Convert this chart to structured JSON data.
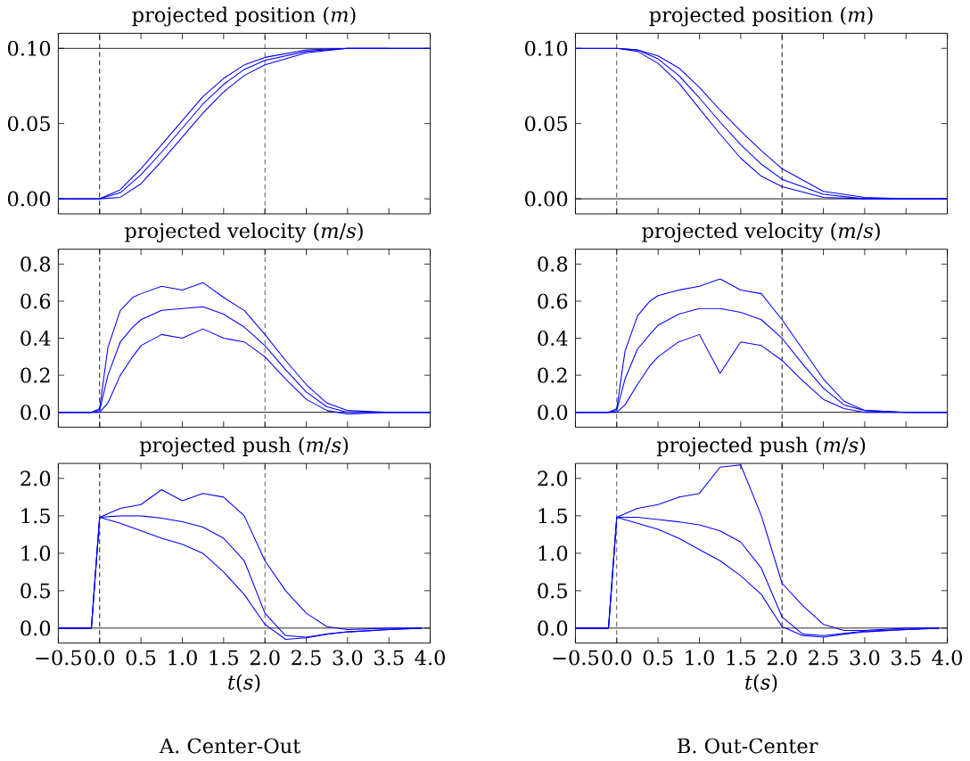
{
  "chart_data": [
    {
      "type": "line",
      "title": "projected position (*m*)",
      "x": [
        -0.5,
        0,
        0.25,
        0.5,
        0.75,
        1.0,
        1.25,
        1.5,
        1.75,
        2.0,
        2.5,
        3.0,
        3.5,
        4.0
      ],
      "xlim": [
        -0.5,
        4.0
      ],
      "ylim": [
        -0.01,
        0.11
      ],
      "tick_labels": "y",
      "xticks": [
        {
          "value": -0.5,
          "label": null
        },
        {
          "value": 0,
          "label": null
        },
        {
          "value": 0.5,
          "label": null
        },
        {
          "value": 1.0,
          "label": null
        },
        {
          "value": 1.5,
          "label": null
        },
        {
          "value": 2.0,
          "label": null
        },
        {
          "value": 2.5,
          "label": null
        },
        {
          "value": 3.0,
          "label": null
        },
        {
          "value": 3.5,
          "label": null
        },
        {
          "value": 4.0,
          "label": null
        }
      ],
      "yticks": [
        {
          "value": 0,
          "label": "0.00"
        },
        {
          "value": 0.05,
          "label": "0.05"
        },
        {
          "value": 0.1,
          "label": "0.10"
        }
      ],
      "ref_lines": [
        {
          "axis": "x",
          "value": 0,
          "color": "#000000",
          "line_style": "dashed"
        },
        {
          "axis": "x",
          "value": 2,
          "color": "#000000",
          "line_style": "dashed"
        },
        {
          "axis": "y",
          "value": 0.1,
          "color": "#000000",
          "line_style": "solid"
        }
      ],
      "series": [
        {
          "color": "#0000ff",
          "x": [
            -0.5,
            0,
            0.25,
            0.5,
            0.75,
            1.0,
            1.25,
            1.5,
            1.75,
            2.0,
            2.5,
            3.0,
            3.5
          ],
          "values": [
            0,
            0,
            0.006,
            0.02,
            0.036,
            0.052,
            0.068,
            0.08,
            0.089,
            0.094,
            0.099,
            0.1,
            0.1
          ]
        },
        {
          "color": "#0000ff",
          "values": [
            0,
            0,
            0.004,
            0.016,
            0.031,
            0.047,
            0.063,
            0.076,
            0.086,
            0.092,
            0.098,
            0.1,
            0.1,
            0.1
          ]
        },
        {
          "color": "#0000ff",
          "x": [
            0,
            0.25,
            0.5,
            0.75,
            1.0,
            1.25,
            1.5,
            1.75,
            2.0,
            2.5,
            3.0,
            3.5,
            4.0
          ],
          "values": [
            0,
            0.001,
            0.01,
            0.025,
            0.041,
            0.057,
            0.071,
            0.082,
            0.089,
            0.097,
            0.1,
            0.1,
            0.1
          ]
        }
      ]
    },
    {
      "type": "line",
      "title": "projected position (*m*)",
      "x": [
        -0.5,
        0,
        0.25,
        0.5,
        0.75,
        1.0,
        1.25,
        1.5,
        1.75,
        2.0,
        2.5,
        3.0,
        3.5,
        4.0
      ],
      "xlim": [
        -0.5,
        4.0
      ],
      "ylim": [
        -0.01,
        0.11
      ],
      "tick_labels": "y",
      "xticks": [
        {
          "value": -0.5,
          "label": null
        },
        {
          "value": 0,
          "label": null
        },
        {
          "value": 0.5,
          "label": null
        },
        {
          "value": 1.0,
          "label": null
        },
        {
          "value": 1.5,
          "label": null
        },
        {
          "value": 2.0,
          "label": null
        },
        {
          "value": 2.5,
          "label": null
        },
        {
          "value": 3.0,
          "label": null
        },
        {
          "value": 3.5,
          "label": null
        },
        {
          "value": 4.0,
          "label": null
        }
      ],
      "yticks": [
        {
          "value": 0,
          "label": "0.00"
        },
        {
          "value": 0.05,
          "label": "0.05"
        },
        {
          "value": 0.1,
          "label": "0.10"
        }
      ],
      "ref_lines": [
        {
          "axis": "x",
          "value": 0,
          "color": "#000000",
          "line_style": "dashed"
        },
        {
          "axis": "x",
          "value": 2,
          "color": "#000000",
          "line_style": "dashed"
        },
        {
          "axis": "y",
          "value": 0,
          "color": "#000000",
          "line_style": "solid"
        }
      ],
      "series": [
        {
          "color": "#0000ff",
          "x": [
            -0.5,
            0,
            0.25,
            0.5,
            0.75,
            1.0,
            1.25,
            1.5,
            1.75,
            2.0,
            2.5,
            3.0,
            3.5
          ],
          "values": [
            0.1,
            0.1,
            0.098,
            0.09,
            0.077,
            0.06,
            0.043,
            0.027,
            0.015,
            0.008,
            0.001,
            0,
            0
          ]
        },
        {
          "color": "#0000ff",
          "values": [
            0.1,
            0.1,
            0.099,
            0.093,
            0.082,
            0.067,
            0.051,
            0.036,
            0.023,
            0.013,
            0.003,
            0,
            0,
            0
          ]
        },
        {
          "color": "#0000ff",
          "x": [
            0,
            0.25,
            0.5,
            0.75,
            1.0,
            1.25,
            1.5,
            1.75,
            2.0,
            2.5,
            3.0,
            3.5,
            4.0
          ],
          "values": [
            0.1,
            0.099,
            0.095,
            0.087,
            0.074,
            0.059,
            0.045,
            0.032,
            0.02,
            0.005,
            0.001,
            0,
            0
          ]
        }
      ]
    },
    {
      "type": "line",
      "title": "projected velocity (*m*/*s*)",
      "x": [
        -0.5,
        -0.1,
        0,
        0.1,
        0.25,
        0.4,
        0.5,
        0.75,
        1.0,
        1.25,
        1.5,
        1.75,
        2.0,
        2.25,
        2.5,
        2.75,
        3.0,
        3.5,
        4.0
      ],
      "xlim": [
        -0.5,
        4.0
      ],
      "ylim": [
        -0.08,
        0.88
      ],
      "tick_labels": "y",
      "xticks": [
        {
          "value": -0.5,
          "label": null
        },
        {
          "value": 0,
          "label": null
        },
        {
          "value": 0.5,
          "label": null
        },
        {
          "value": 1.0,
          "label": null
        },
        {
          "value": 1.5,
          "label": null
        },
        {
          "value": 2.0,
          "label": null
        },
        {
          "value": 2.5,
          "label": null
        },
        {
          "value": 3.0,
          "label": null
        },
        {
          "value": 3.5,
          "label": null
        },
        {
          "value": 4.0,
          "label": null
        }
      ],
      "yticks": [
        {
          "value": 0,
          "label": "0.0"
        },
        {
          "value": 0.2,
          "label": "0.2"
        },
        {
          "value": 0.4,
          "label": "0.4"
        },
        {
          "value": 0.6,
          "label": "0.6"
        },
        {
          "value": 0.8,
          "label": "0.8"
        }
      ],
      "ref_lines": [
        {
          "axis": "x",
          "value": 0,
          "color": "#000000",
          "line_style": "dashed"
        },
        {
          "axis": "x",
          "value": 2,
          "color": "#000000",
          "line_style": "dashed"
        },
        {
          "axis": "y",
          "value": 0,
          "color": "#000000",
          "line_style": "solid"
        }
      ],
      "series": [
        {
          "color": "#0000ff",
          "values": [
            0,
            0,
            0.02,
            0.35,
            0.55,
            0.62,
            0.64,
            0.68,
            0.66,
            0.7,
            0.62,
            0.55,
            0.42,
            0.28,
            0.15,
            0.05,
            0.01,
            0,
            0
          ]
        },
        {
          "color": "#0000ff",
          "values": [
            0,
            0,
            0.01,
            0.2,
            0.38,
            0.46,
            0.5,
            0.55,
            0.56,
            0.57,
            0.53,
            0.46,
            0.36,
            0.23,
            0.11,
            0.03,
            0,
            0,
            0
          ]
        },
        {
          "color": "#0000ff",
          "values": [
            0,
            0,
            0,
            0.05,
            0.2,
            0.3,
            0.36,
            0.42,
            0.4,
            0.45,
            0.4,
            0.38,
            0.3,
            0.18,
            0.07,
            0.01,
            -0.01,
            0,
            0
          ]
        }
      ]
    },
    {
      "type": "line",
      "title": "projected velocity (*m*/*s*)",
      "x": [
        -0.5,
        -0.1,
        0,
        0.1,
        0.25,
        0.4,
        0.5,
        0.75,
        1.0,
        1.25,
        1.5,
        1.75,
        2.0,
        2.25,
        2.5,
        2.75,
        3.0,
        3.5,
        4.0
      ],
      "xlim": [
        -0.5,
        4.0
      ],
      "ylim": [
        -0.08,
        0.88
      ],
      "tick_labels": "y",
      "xticks": [
        {
          "value": -0.5,
          "label": null
        },
        {
          "value": 0,
          "label": null
        },
        {
          "value": 0.5,
          "label": null
        },
        {
          "value": 1.0,
          "label": null
        },
        {
          "value": 1.5,
          "label": null
        },
        {
          "value": 2.0,
          "label": null
        },
        {
          "value": 2.5,
          "label": null
        },
        {
          "value": 3.0,
          "label": null
        },
        {
          "value": 3.5,
          "label": null
        },
        {
          "value": 4.0,
          "label": null
        }
      ],
      "yticks": [
        {
          "value": 0,
          "label": "0.0"
        },
        {
          "value": 0.2,
          "label": "0.2"
        },
        {
          "value": 0.4,
          "label": "0.4"
        },
        {
          "value": 0.6,
          "label": "0.6"
        },
        {
          "value": 0.8,
          "label": "0.8"
        }
      ],
      "ref_lines": [
        {
          "axis": "x",
          "value": 0,
          "color": "#000000",
          "line_style": "dashed"
        },
        {
          "axis": "x",
          "value": 2,
          "color": "#000000",
          "line_style": "dashed"
        },
        {
          "axis": "y",
          "value": 0,
          "color": "#000000",
          "line_style": "solid"
        }
      ],
      "series": [
        {
          "color": "#0000ff",
          "values": [
            0,
            0,
            0.02,
            0.33,
            0.52,
            0.6,
            0.63,
            0.66,
            0.68,
            0.72,
            0.66,
            0.64,
            0.5,
            0.34,
            0.18,
            0.06,
            0.01,
            0,
            0
          ]
        },
        {
          "color": "#0000ff",
          "values": [
            0,
            0,
            0.01,
            0.18,
            0.34,
            0.42,
            0.47,
            0.53,
            0.56,
            0.56,
            0.54,
            0.5,
            0.4,
            0.26,
            0.13,
            0.04,
            0.01,
            0,
            0
          ]
        },
        {
          "color": "#0000ff",
          "values": [
            0,
            0,
            0,
            0.04,
            0.15,
            0.25,
            0.3,
            0.38,
            0.42,
            0.21,
            0.38,
            0.36,
            0.28,
            0.17,
            0.07,
            0.02,
            0,
            0,
            0
          ]
        }
      ]
    },
    {
      "type": "line",
      "title": "projected push (*m*/*s*)",
      "xlabel": "*t*(*s*)",
      "x": [
        -0.5,
        -0.1,
        0,
        0.25,
        0.5,
        0.75,
        1.0,
        1.25,
        1.5,
        1.75,
        2.0,
        2.25,
        2.5,
        2.75,
        3.0,
        3.5,
        3.9
      ],
      "xlim": [
        -0.5,
        4.0
      ],
      "ylim": [
        -0.2,
        2.2
      ],
      "xticks": [
        {
          "value": -0.5,
          "label": "−0.5"
        },
        {
          "value": 0,
          "label": "0.0"
        },
        {
          "value": 0.5,
          "label": "0.5"
        },
        {
          "value": 1.0,
          "label": "1.0"
        },
        {
          "value": 1.5,
          "label": "1.5"
        },
        {
          "value": 2.0,
          "label": "2.0"
        },
        {
          "value": 2.5,
          "label": "2.5"
        },
        {
          "value": 3.0,
          "label": "3.0"
        },
        {
          "value": 3.5,
          "label": "3.5"
        },
        {
          "value": 4.0,
          "label": "4.0"
        }
      ],
      "yticks": [
        {
          "value": 0,
          "label": "0.0"
        },
        {
          "value": 0.5,
          "label": "0.5"
        },
        {
          "value": 1.0,
          "label": "1.0"
        },
        {
          "value": 1.5,
          "label": "1.5"
        },
        {
          "value": 2.0,
          "label": "2.0"
        }
      ],
      "ref_lines": [
        {
          "axis": "x",
          "value": 0,
          "color": "#000000",
          "line_style": "dashed"
        },
        {
          "axis": "x",
          "value": 2,
          "color": "#000000",
          "line_style": "dashed"
        },
        {
          "axis": "y",
          "value": 0,
          "color": "#000000",
          "line_style": "solid"
        }
      ],
      "annotations": [
        "A. Center-Out"
      ],
      "series": [
        {
          "color": "#0000ff",
          "values": [
            0,
            0,
            1.48,
            1.6,
            1.65,
            1.85,
            1.7,
            1.8,
            1.75,
            1.5,
            0.9,
            0.5,
            0.2,
            0.02,
            -0.02,
            0,
            0
          ]
        },
        {
          "color": "#0000ff",
          "values": [
            0,
            0,
            1.48,
            1.5,
            1.5,
            1.47,
            1.42,
            1.35,
            1.2,
            0.9,
            0.2,
            -0.1,
            -0.12,
            -0.08,
            -0.05,
            -0.02,
            0
          ]
        },
        {
          "color": "#0000ff",
          "values": [
            0,
            0,
            1.48,
            1.4,
            1.3,
            1.2,
            1.12,
            1.0,
            0.75,
            0.45,
            0.05,
            -0.15,
            -0.13,
            -0.08,
            -0.05,
            -0.02,
            0
          ]
        }
      ]
    },
    {
      "type": "line",
      "title": "projected push (*m*/*s*)",
      "xlabel": "*t*(*s*)",
      "x": [
        -0.5,
        -0.1,
        0,
        0.25,
        0.5,
        0.75,
        1.0,
        1.25,
        1.5,
        1.75,
        2.0,
        2.25,
        2.5,
        2.75,
        3.0,
        3.5,
        3.9
      ],
      "xlim": [
        -0.5,
        4.0
      ],
      "ylim": [
        -0.2,
        2.2
      ],
      "xticks": [
        {
          "value": -0.5,
          "label": "−0.5"
        },
        {
          "value": 0,
          "label": "0.0"
        },
        {
          "value": 0.5,
          "label": "0.5"
        },
        {
          "value": 1.0,
          "label": "1.0"
        },
        {
          "value": 1.5,
          "label": "1.5"
        },
        {
          "value": 2.0,
          "label": "2.0"
        },
        {
          "value": 2.5,
          "label": "2.5"
        },
        {
          "value": 3.0,
          "label": "3.0"
        },
        {
          "value": 3.5,
          "label": "3.5"
        },
        {
          "value": 4.0,
          "label": "4.0"
        }
      ],
      "yticks": [
        {
          "value": 0,
          "label": "0.0"
        },
        {
          "value": 0.5,
          "label": "0.5"
        },
        {
          "value": 1.0,
          "label": "1.0"
        },
        {
          "value": 1.5,
          "label": "1.5"
        },
        {
          "value": 2.0,
          "label": "2.0"
        }
      ],
      "ref_lines": [
        {
          "axis": "x",
          "value": 0,
          "color": "#000000",
          "line_style": "dashed"
        },
        {
          "axis": "x",
          "value": 2,
          "color": "#000000",
          "line_style": "dashed"
        },
        {
          "axis": "y",
          "value": 0,
          "color": "#000000",
          "line_style": "solid"
        }
      ],
      "annotations": [
        "B. Out-Center"
      ],
      "series": [
        {
          "color": "#0000ff",
          "values": [
            0,
            0,
            1.48,
            1.6,
            1.65,
            1.75,
            1.8,
            2.15,
            2.18,
            1.5,
            0.6,
            0.3,
            0.05,
            -0.03,
            -0.03,
            0,
            0
          ]
        },
        {
          "color": "#0000ff",
          "values": [
            0,
            0,
            1.48,
            1.48,
            1.45,
            1.42,
            1.38,
            1.3,
            1.15,
            0.8,
            0.15,
            -0.08,
            -0.1,
            -0.07,
            -0.04,
            -0.02,
            0
          ]
        },
        {
          "color": "#0000ff",
          "values": [
            0,
            0,
            1.48,
            1.4,
            1.32,
            1.2,
            1.05,
            0.9,
            0.7,
            0.45,
            0.02,
            -0.1,
            -0.12,
            -0.08,
            -0.05,
            -0.02,
            0
          ]
        }
      ]
    }
  ]
}
